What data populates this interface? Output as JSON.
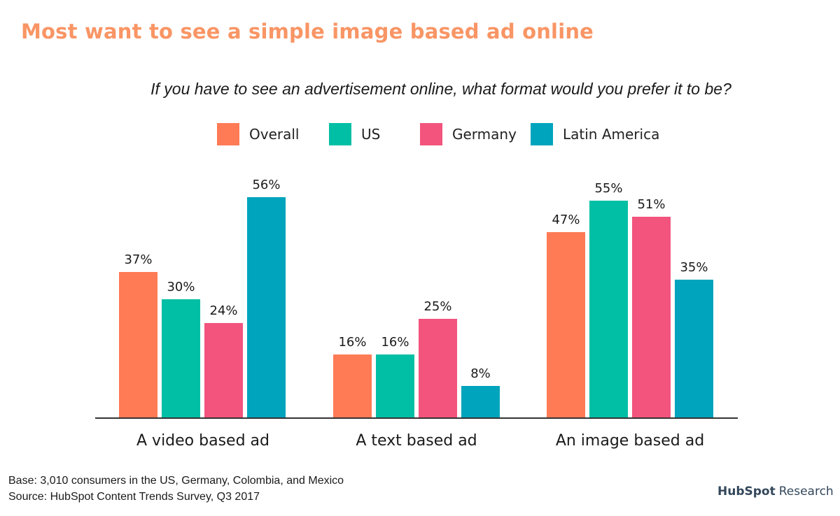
{
  "title": "Most want to see a simple image based ad online",
  "subtitle": "If you have to see an advertisement online, what format would you prefer it to be?",
  "legend": [
    {
      "label": "Overall",
      "color": "#ff7b55"
    },
    {
      "label": "US",
      "color": "#00bfa5"
    },
    {
      "label": "Germany",
      "color": "#f2547d"
    },
    {
      "label": "Latin America",
      "color": "#00a4bd"
    }
  ],
  "footnote": {
    "base": "Base: 3,010 consumers in the US, Germany, Colombia, and Mexico",
    "source": "Source: HubSpot Content Trends Survey, Q3 2017"
  },
  "brand": {
    "hub": "HubSpot",
    "research": "Research"
  },
  "chart_data": {
    "type": "bar",
    "title": "Most want to see a simple image based ad online",
    "subtitle": "If you have to see an advertisement online, what format would you prefer it to be?",
    "categories": [
      "A video based ad",
      "A text based ad",
      "An image based ad"
    ],
    "series": [
      {
        "name": "Overall",
        "color": "#ff7b55",
        "values": [
          37,
          16,
          47
        ],
        "labels": [
          "37%",
          "16%",
          "47%"
        ]
      },
      {
        "name": "US",
        "color": "#00bfa5",
        "values": [
          30,
          16,
          55
        ],
        "labels": [
          "30%",
          "16%",
          "55%"
        ]
      },
      {
        "name": "Germany",
        "color": "#f2547d",
        "values": [
          24,
          25,
          51
        ],
        "labels": [
          "24%",
          "25%",
          "51%"
        ]
      },
      {
        "name": "Latin America",
        "color": "#00a4bd",
        "values": [
          56,
          8,
          35
        ],
        "labels": [
          "56%",
          "8%",
          "35%"
        ]
      }
    ],
    "xlabel": "",
    "ylabel": "",
    "ylim": [
      0,
      60
    ],
    "grid": false,
    "legend_position": "top",
    "value_format": "percent"
  }
}
